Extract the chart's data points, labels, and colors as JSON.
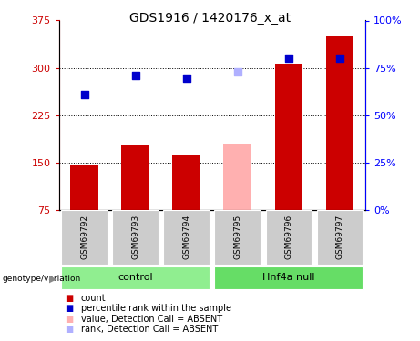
{
  "title": "GDS1916 / 1420176_x_at",
  "samples": [
    "GSM69792",
    "GSM69793",
    "GSM69794",
    "GSM69795",
    "GSM69796",
    "GSM69797"
  ],
  "bar_values": [
    145,
    178,
    163,
    180,
    307,
    350
  ],
  "bar_colors": [
    "#cc0000",
    "#cc0000",
    "#cc0000",
    "#ffb0b0",
    "#cc0000",
    "#cc0000"
  ],
  "rank_values": [
    258,
    288,
    284,
    293,
    315,
    315
  ],
  "rank_colors": [
    "#0000cc",
    "#0000cc",
    "#0000cc",
    "#b0b0ff",
    "#0000cc",
    "#0000cc"
  ],
  "ylim_left": [
    75,
    375
  ],
  "ylim_right": [
    0,
    100
  ],
  "yticks_left": [
    75,
    150,
    225,
    300,
    375
  ],
  "yticks_right": [
    0,
    25,
    50,
    75,
    100
  ],
  "hlines": [
    150,
    225,
    300
  ],
  "background_color": "#ffffff",
  "plot_bg": "#ffffff",
  "gray_label_bg": "#cccccc",
  "green_light": "#90ee90",
  "green_dark": "#66dd66",
  "legend_items": [
    {
      "label": "count",
      "color": "#cc0000"
    },
    {
      "label": "percentile rank within the sample",
      "color": "#0000cc"
    },
    {
      "label": "value, Detection Call = ABSENT",
      "color": "#ffb0b0"
    },
    {
      "label": "rank, Detection Call = ABSENT",
      "color": "#b0b0ff"
    }
  ],
  "group_spans": [
    {
      "label": "control",
      "start": 0,
      "end": 3
    },
    {
      "label": "Hnf4a null",
      "start": 3,
      "end": 6
    }
  ]
}
